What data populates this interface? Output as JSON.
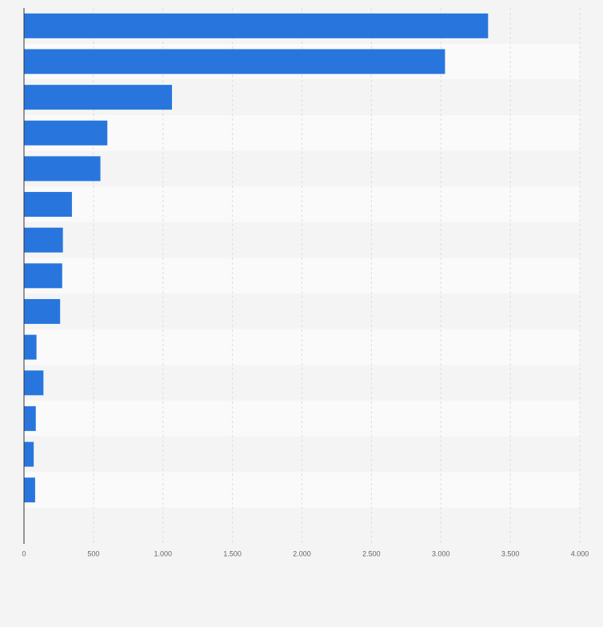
{
  "chart_data": {
    "type": "bar",
    "orientation": "horizontal",
    "categories": [
      null,
      null,
      null,
      null,
      null,
      null,
      null,
      null,
      null,
      null,
      null,
      null,
      null,
      null
    ],
    "values": [
      3340,
      3030,
      1065,
      600,
      550,
      345,
      280,
      275,
      260,
      90,
      140,
      85,
      70,
      80
    ],
    "color": "#2876dd",
    "xlim": [
      0,
      4000
    ],
    "xticks": [
      0,
      500,
      {
        "value": 1000,
        "label": "1.000"
      },
      {
        "value": 1500,
        "label": "1.500"
      },
      {
        "value": 2000,
        "label": "2.000"
      },
      {
        "value": 2500,
        "label": "2.500"
      },
      {
        "value": 3000,
        "label": "3.000"
      },
      {
        "value": 3500,
        "label": "3.500"
      },
      {
        "value": 4000,
        "label": "4.000"
      }
    ],
    "grid": true
  }
}
